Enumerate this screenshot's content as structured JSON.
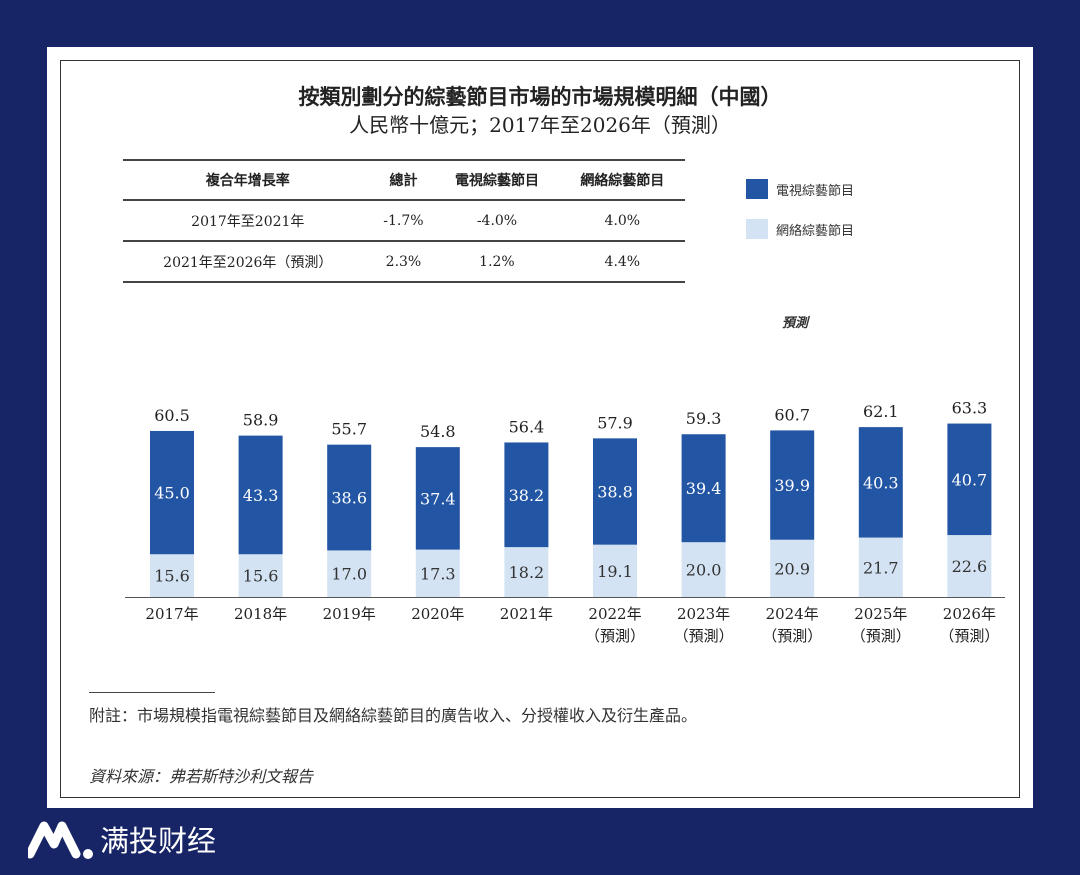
{
  "brand": {
    "name": "满投财经",
    "watermark": "满投财经"
  },
  "chart_data": {
    "type": "bar",
    "stacked": true,
    "title": "按類別劃分的綜藝節目市場的市場規模明細（中國）",
    "subtitle": "人民幣十億元；2017年至2026年（預測）",
    "forecast_label": "預測",
    "categories": [
      [
        "2017年",
        ""
      ],
      [
        "2018年",
        ""
      ],
      [
        "2019年",
        ""
      ],
      [
        "2020年",
        ""
      ],
      [
        "2021年",
        ""
      ],
      [
        "2022年",
        "（預測）"
      ],
      [
        "2023年",
        "（預測）"
      ],
      [
        "2024年",
        "（預測）"
      ],
      [
        "2025年",
        "（預測）"
      ],
      [
        "2026年",
        "（預測）"
      ]
    ],
    "series": [
      {
        "name": "電視綜藝節目",
        "color": "#2255a4",
        "values": [
          45.0,
          43.3,
          38.6,
          37.4,
          38.2,
          38.8,
          39.4,
          39.9,
          40.3,
          40.7
        ]
      },
      {
        "name": "網絡綜藝節目",
        "color": "#d3e3f4",
        "values": [
          15.6,
          15.6,
          17.0,
          17.3,
          18.2,
          19.1,
          20.0,
          20.9,
          21.7,
          22.6
        ]
      }
    ],
    "totals": [
      60.5,
      58.9,
      55.7,
      54.8,
      56.4,
      57.9,
      59.3,
      60.7,
      62.1,
      63.3
    ],
    "legend_position": "top-right"
  },
  "cagr_table": {
    "headers": [
      "複合年增長率",
      "總計",
      "電視綜藝節目",
      "網絡綜藝節目"
    ],
    "rows": [
      [
        "2017年至2021年",
        "-1.7%",
        "-4.0%",
        "4.0%"
      ],
      [
        "2021年至2026年（預測）",
        "2.3%",
        "1.2%",
        "4.4%"
      ]
    ]
  },
  "notes": {
    "note": "附註：市場規模指電視綜藝節目及網絡綜藝節目的廣告收入、分授權收入及衍生產品。",
    "source": "資料來源：弗若斯特沙利文報告"
  }
}
